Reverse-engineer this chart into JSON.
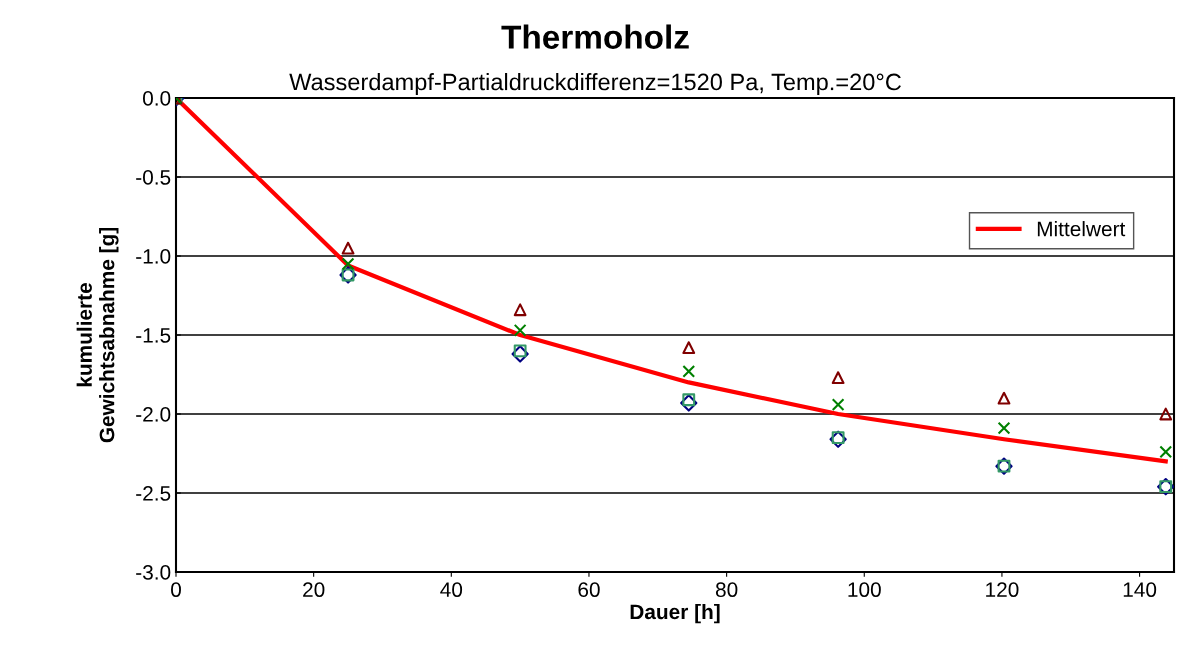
{
  "chart_data": {
    "type": "scatter",
    "title": "Thermoholz",
    "subtitle": "Wasserdampf-Partialdruckdifferenz=1520 Pa, Temp.=20°C",
    "xlabel": "Dauer [h]",
    "ylabel": "kumulierte\nGewichtsabnahme [g]",
    "x": [
      0,
      25,
      50,
      74.5,
      96.2,
      120.3,
      143.8
    ],
    "series": [
      {
        "color": "#000080",
        "marker": "diamond",
        "values": [
          0,
          -1.12,
          -1.62,
          -1.93,
          -2.16,
          -2.33,
          -2.46
        ]
      },
      {
        "color": "#339966",
        "marker": "square",
        "values": [
          0,
          -1.12,
          -1.6,
          -1.91,
          -2.15,
          -2.33,
          -2.46
        ]
      },
      {
        "color": "#800000",
        "marker": "triangle",
        "values": [
          0,
          -0.95,
          -1.34,
          -1.58,
          -1.77,
          -1.9,
          -2.0
        ]
      },
      {
        "color": "#008000",
        "marker": "cross",
        "values": [
          0,
          -1.05,
          -1.47,
          -1.73,
          -1.94,
          -2.09,
          -2.24
        ]
      },
      {
        "name": "Mittelwert",
        "type": "line",
        "color": "#ff0000",
        "marker": "none",
        "line_style": "solid",
        "values": [
          0,
          -1.06,
          -1.5,
          -1.8,
          -2.0,
          -2.16,
          -2.3
        ]
      }
    ],
    "xlim": [
      0,
      145
    ],
    "xticks": [
      0,
      20,
      40,
      60,
      80,
      100,
      120,
      140
    ],
    "ylim": [
      -3.0,
      0
    ],
    "yticks": [
      {
        "value": 0,
        "label": "0.0"
      },
      {
        "value": -0.5,
        "label": "-0.5"
      },
      {
        "value": -1.0,
        "label": "-1.0"
      },
      {
        "value": -1.5,
        "label": "-1.5"
      },
      {
        "value": -2.0,
        "label": "-2.0"
      },
      {
        "value": -2.5,
        "label": "-2.5"
      },
      {
        "value": -3.0,
        "label": "-3.0"
      }
    ],
    "grid": "y",
    "legend": "top right"
  }
}
